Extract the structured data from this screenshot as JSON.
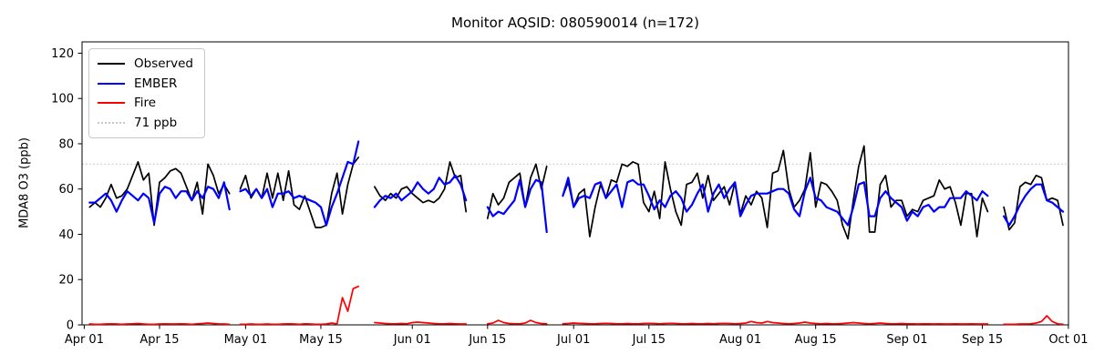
{
  "title": "Monitor AQSID: 080590014 (n=172)",
  "chart_data": {
    "type": "line",
    "title": "Monitor AQSID: 080590014 (n=172)",
    "monitor_aqsid": "080590014",
    "n_points": 172,
    "xlabel": "",
    "ylabel": "MDA8 O3 (ppb)",
    "ylim": [
      0,
      125
    ],
    "grid": false,
    "legend_position": "upper left",
    "x_unit": "days since Apr 01",
    "x_ticks": [
      {
        "day": 0,
        "label": "Apr 01"
      },
      {
        "day": 14,
        "label": "Apr 15"
      },
      {
        "day": 30,
        "label": "May 01"
      },
      {
        "day": 44,
        "label": "May 15"
      },
      {
        "day": 61,
        "label": "Jun 01"
      },
      {
        "day": 75,
        "label": "Jun 15"
      },
      {
        "day": 91,
        "label": "Jul 01"
      },
      {
        "day": 105,
        "label": "Jul 15"
      },
      {
        "day": 122,
        "label": "Aug 01"
      },
      {
        "day": 136,
        "label": "Aug 15"
      },
      {
        "day": 153,
        "label": "Sep 01"
      },
      {
        "day": 167,
        "label": "Sep 15"
      },
      {
        "day": 183,
        "label": "Oct 01"
      }
    ],
    "y_ticks": [
      0,
      20,
      40,
      60,
      80,
      100,
      120
    ],
    "threshold": {
      "label": "71 ppb",
      "value": 71,
      "color": "#c8c8c8",
      "style": "dotted"
    },
    "missing_days": [
      "Apr 01",
      "Apr 29",
      "May 23",
      "May 24",
      "Jun 12",
      "Jun 13",
      "Jun 14",
      "Jun 27",
      "Jun 28",
      "Sep 17",
      "Sep 18"
    ],
    "series": [
      {
        "name": "Observed",
        "color": "#000000",
        "segments": [
          {
            "start_day": 1,
            "start_date": "Apr 02",
            "values": [
              52,
              54,
              52,
              56,
              62,
              56,
              57,
              60,
              66,
              72,
              64,
              67,
              44,
              63,
              65,
              68,
              69,
              67,
              61,
              55,
              63,
              49,
              71,
              66,
              58,
              62,
              58
            ]
          },
          {
            "start_day": 29,
            "start_date": "Apr 30",
            "values": [
              60,
              66,
              56,
              60,
              56,
              67,
              56,
              67,
              55,
              68,
              53,
              51,
              57,
              50,
              43,
              43,
              44,
              58,
              67,
              49,
              62,
              71,
              74
            ]
          },
          {
            "start_day": 54,
            "start_date": "May 25",
            "values": [
              61,
              57,
              55,
              58,
              56,
              60,
              61,
              58,
              56,
              54,
              55,
              54,
              56,
              60,
              72,
              65,
              66,
              50
            ]
          },
          {
            "start_day": 75,
            "start_date": "Jun 15",
            "values": [
              47,
              58,
              53,
              56,
              63,
              65,
              67,
              52,
              65,
              71,
              60,
              70
            ]
          },
          {
            "start_day": 89,
            "start_date": "Jun 29",
            "values": [
              57,
              63,
              52,
              58,
              60,
              39,
              52,
              62,
              56,
              64,
              63,
              71,
              70,
              72,
              71,
              54,
              50,
              59,
              47,
              72,
              60,
              50,
              44,
              62,
              63,
              67,
              56,
              66,
              55,
              58,
              61,
              53,
              63,
              49,
              57,
              53,
              59,
              56,
              43,
              67,
              68,
              77,
              60,
              52,
              55,
              60,
              76,
              52,
              63,
              62,
              59,
              55,
              44,
              38,
              55,
              70,
              79,
              41,
              41,
              62,
              66,
              52,
              55,
              55,
              48,
              51,
              50,
              55,
              56,
              57,
              64,
              60,
              61,
              54,
              44,
              58,
              58,
              39,
              56,
              50
            ]
          },
          {
            "start_day": 171,
            "start_date": "Sep 19",
            "values": [
              52,
              42,
              45,
              61,
              63,
              62,
              66,
              65,
              55,
              56,
              55,
              44
            ]
          }
        ]
      },
      {
        "name": "EMBER",
        "color": "#0000ff",
        "segments": [
          {
            "start_day": 1,
            "start_date": "Apr 02",
            "values": [
              54,
              54,
              56,
              58,
              55,
              50,
              55,
              59,
              57,
              55,
              58,
              56,
              45,
              58,
              61,
              60,
              56,
              59,
              59,
              55,
              59,
              56,
              61,
              60,
              56,
              63,
              51
            ]
          },
          {
            "start_day": 29,
            "start_date": "Apr 30",
            "values": [
              59,
              60,
              57,
              60,
              56,
              60,
              52,
              58,
              58,
              59,
              56,
              57,
              56,
              55,
              54,
              52,
              44,
              52,
              58,
              65,
              72,
              71,
              81
            ]
          },
          {
            "start_day": 54,
            "start_date": "May 25",
            "values": [
              52,
              55,
              57,
              56,
              58,
              55,
              57,
              59,
              63,
              60,
              58,
              60,
              65,
              62,
              63,
              66,
              62,
              55
            ]
          },
          {
            "start_day": 75,
            "start_date": "Jun 15",
            "values": [
              52,
              48,
              50,
              49,
              52,
              55,
              64,
              52,
              60,
              64,
              63,
              41
            ]
          },
          {
            "start_day": 89,
            "start_date": "Jun 29",
            "values": [
              57,
              65,
              52,
              56,
              57,
              56,
              62,
              63,
              56,
              59,
              62,
              52,
              63,
              64,
              62,
              62,
              57,
              51,
              55,
              52,
              57,
              59,
              56,
              50,
              53,
              58,
              62,
              50,
              58,
              62,
              56,
              60,
              63,
              48,
              53,
              57,
              58,
              58,
              58,
              59,
              60,
              60,
              58,
              51,
              48,
              59,
              65,
              56,
              55,
              52,
              51,
              50,
              47,
              44,
              52,
              62,
              63,
              48,
              48,
              56,
              59,
              56,
              54,
              52,
              46,
              50,
              48,
              52,
              53,
              50,
              52,
              52,
              56,
              56,
              56,
              59,
              57,
              55,
              59,
              57
            ]
          },
          {
            "start_day": 171,
            "start_date": "Sep 19",
            "values": [
              48,
              44,
              48,
              53,
              57,
              60,
              62,
              62,
              55,
              54,
              52,
              50
            ]
          }
        ]
      },
      {
        "name": "Fire",
        "color": "#ff0000",
        "segments": [
          {
            "start_day": 1,
            "start_date": "Apr 02",
            "values": [
              0.4,
              0.3,
              0.3,
              0.4,
              0.5,
              0.4,
              0.3,
              0.4,
              0.5,
              0.6,
              0.4,
              0.3,
              0.3,
              0.4,
              0.5,
              0.4,
              0.4,
              0.5,
              0.4,
              0.3,
              0.5,
              0.6,
              0.8,
              0.6,
              0.4,
              0.4,
              0.3
            ]
          },
          {
            "start_day": 29,
            "start_date": "Apr 30",
            "values": [
              0.3,
              0.3,
              0.4,
              0.3,
              0.3,
              0.4,
              0.3,
              0.3,
              0.4,
              0.5,
              0.4,
              0.3,
              0.5,
              0.4,
              0.3,
              0.3,
              0.4,
              0.8,
              0.4,
              12,
              6,
              16,
              17
            ]
          },
          {
            "start_day": 54,
            "start_date": "May 25",
            "values": [
              1,
              0.8,
              0.6,
              0.5,
              0.5,
              0.6,
              0.5,
              1,
              1.2,
              1,
              0.8,
              0.6,
              0.5,
              0.5,
              0.6,
              0.5,
              0.4,
              0.4
            ]
          },
          {
            "start_day": 75,
            "start_date": "Jun 15",
            "values": [
              0.5,
              0.8,
              2,
              1,
              0.6,
              0.5,
              0.5,
              0.8,
              2,
              1,
              0.6,
              0.5
            ]
          },
          {
            "start_day": 89,
            "start_date": "Jun 29",
            "values": [
              0.5,
              0.6,
              0.8,
              0.7,
              0.6,
              0.5,
              0.5,
              0.6,
              0.7,
              0.6,
              0.5,
              0.5,
              0.6,
              0.5,
              0.5,
              0.6,
              0.7,
              0.6,
              0.5,
              0.6,
              0.7,
              0.6,
              0.5,
              0.5,
              0.6,
              0.5,
              0.5,
              0.6,
              0.5,
              0.6,
              0.7,
              0.6,
              0.5,
              0.6,
              0.8,
              1.5,
              1,
              0.8,
              1.5,
              1,
              0.8,
              0.6,
              0.5,
              0.6,
              0.8,
              1.2,
              0.8,
              0.6,
              0.5,
              0.6,
              0.5,
              0.5,
              0.6,
              0.8,
              1,
              0.8,
              0.6,
              0.5,
              0.6,
              0.8,
              0.6,
              0.5,
              0.5,
              0.6,
              0.5,
              0.5,
              0.4,
              0.5,
              0.5,
              0.4,
              0.5,
              0.4,
              0.4,
              0.5,
              0.4,
              0.4,
              0.5,
              0.4,
              0.4,
              0.4
            ]
          },
          {
            "start_day": 171,
            "start_date": "Sep 19",
            "values": [
              0.3,
              0.3,
              0.3,
              0.4,
              0.4,
              0.5,
              0.8,
              1.5,
              4,
              1.5,
              0.5,
              0.3
            ]
          }
        ]
      }
    ]
  }
}
